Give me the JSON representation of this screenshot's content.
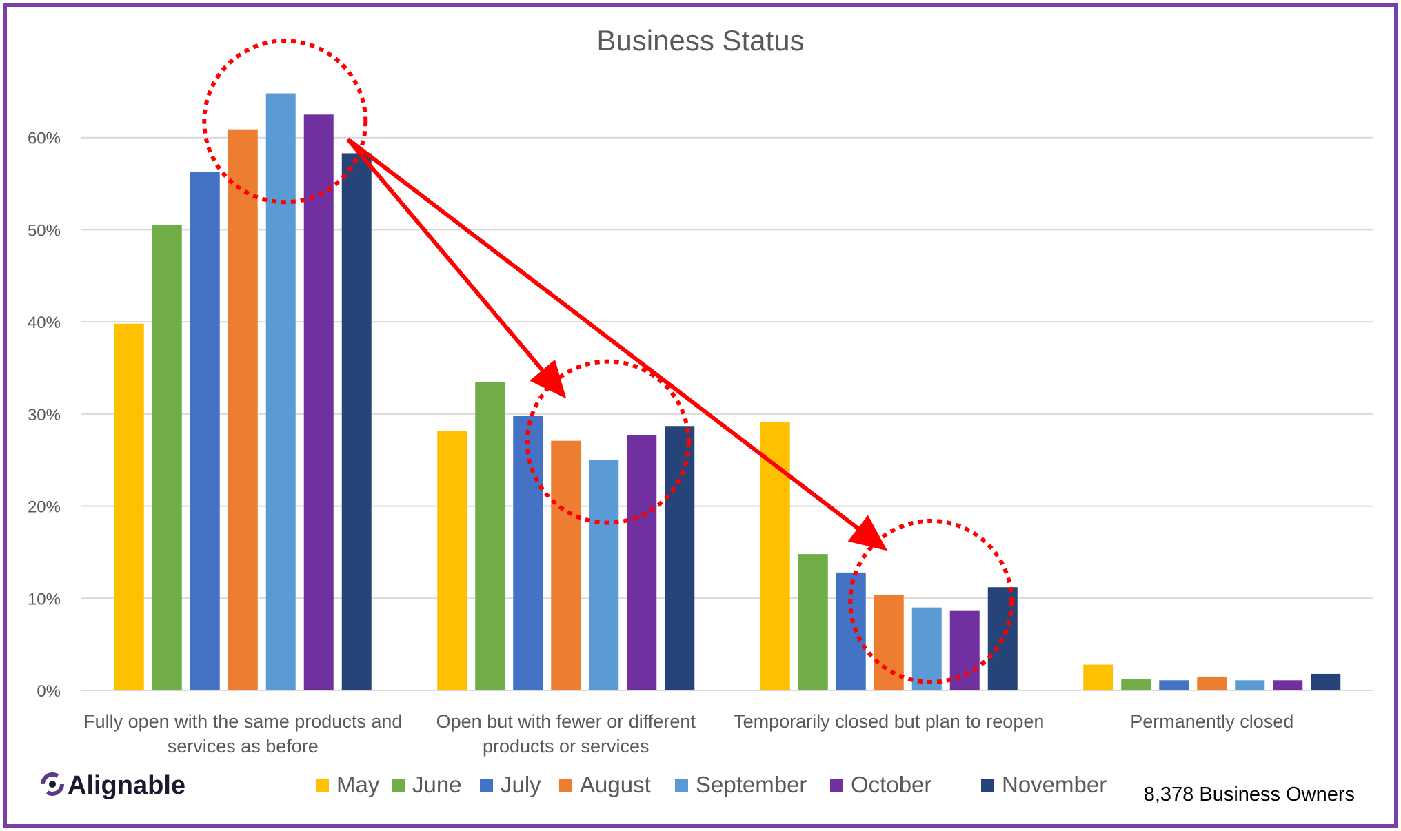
{
  "chart_data": {
    "type": "bar",
    "title": "Business Status",
    "xlabel": "",
    "ylabel": "",
    "ylim": [
      0,
      0.7
    ],
    "y_ticks": [
      0,
      0.1,
      0.2,
      0.3,
      0.4,
      0.5,
      0.6
    ],
    "y_tick_labels": [
      "0%",
      "10%",
      "20%",
      "30%",
      "40%",
      "50%",
      "60%"
    ],
    "grid": true,
    "legend_position": "bottom",
    "categories": [
      [
        "Fully open with the same products and",
        "services as before"
      ],
      [
        "Open but with fewer or different",
        "products or services"
      ],
      [
        "Temporarily closed but plan to reopen"
      ],
      [
        "Permanently closed"
      ]
    ],
    "series": [
      {
        "name": "May",
        "color": "#FFC000",
        "values": [
          0.398,
          0.282,
          0.291,
          0.028
        ]
      },
      {
        "name": "June",
        "color": "#70AD47",
        "values": [
          0.505,
          0.335,
          0.148,
          0.012
        ]
      },
      {
        "name": "July",
        "color": "#4472C4",
        "values": [
          0.563,
          0.298,
          0.128,
          0.011
        ]
      },
      {
        "name": "August",
        "color": "#ED7D31",
        "values": [
          0.609,
          0.271,
          0.104,
          0.015
        ]
      },
      {
        "name": "September",
        "color": "#5B9BD5",
        "values": [
          0.648,
          0.25,
          0.09,
          0.011
        ]
      },
      {
        "name": "October",
        "color": "#7030A0",
        "values": [
          0.625,
          0.277,
          0.087,
          0.011
        ]
      },
      {
        "name": "November",
        "color": "#264478",
        "values": [
          0.583,
          0.287,
          0.112,
          0.018
        ]
      }
    ],
    "annotations": {
      "circle_color": "#FF0000",
      "arrow_color": "#FF0000"
    }
  },
  "logo": {
    "text": "Alignable"
  },
  "source_note": "8,378 Business Owners",
  "colors": {
    "frame": "#7a3fa6",
    "grid": "#d9d9d9",
    "text": "#595959"
  }
}
